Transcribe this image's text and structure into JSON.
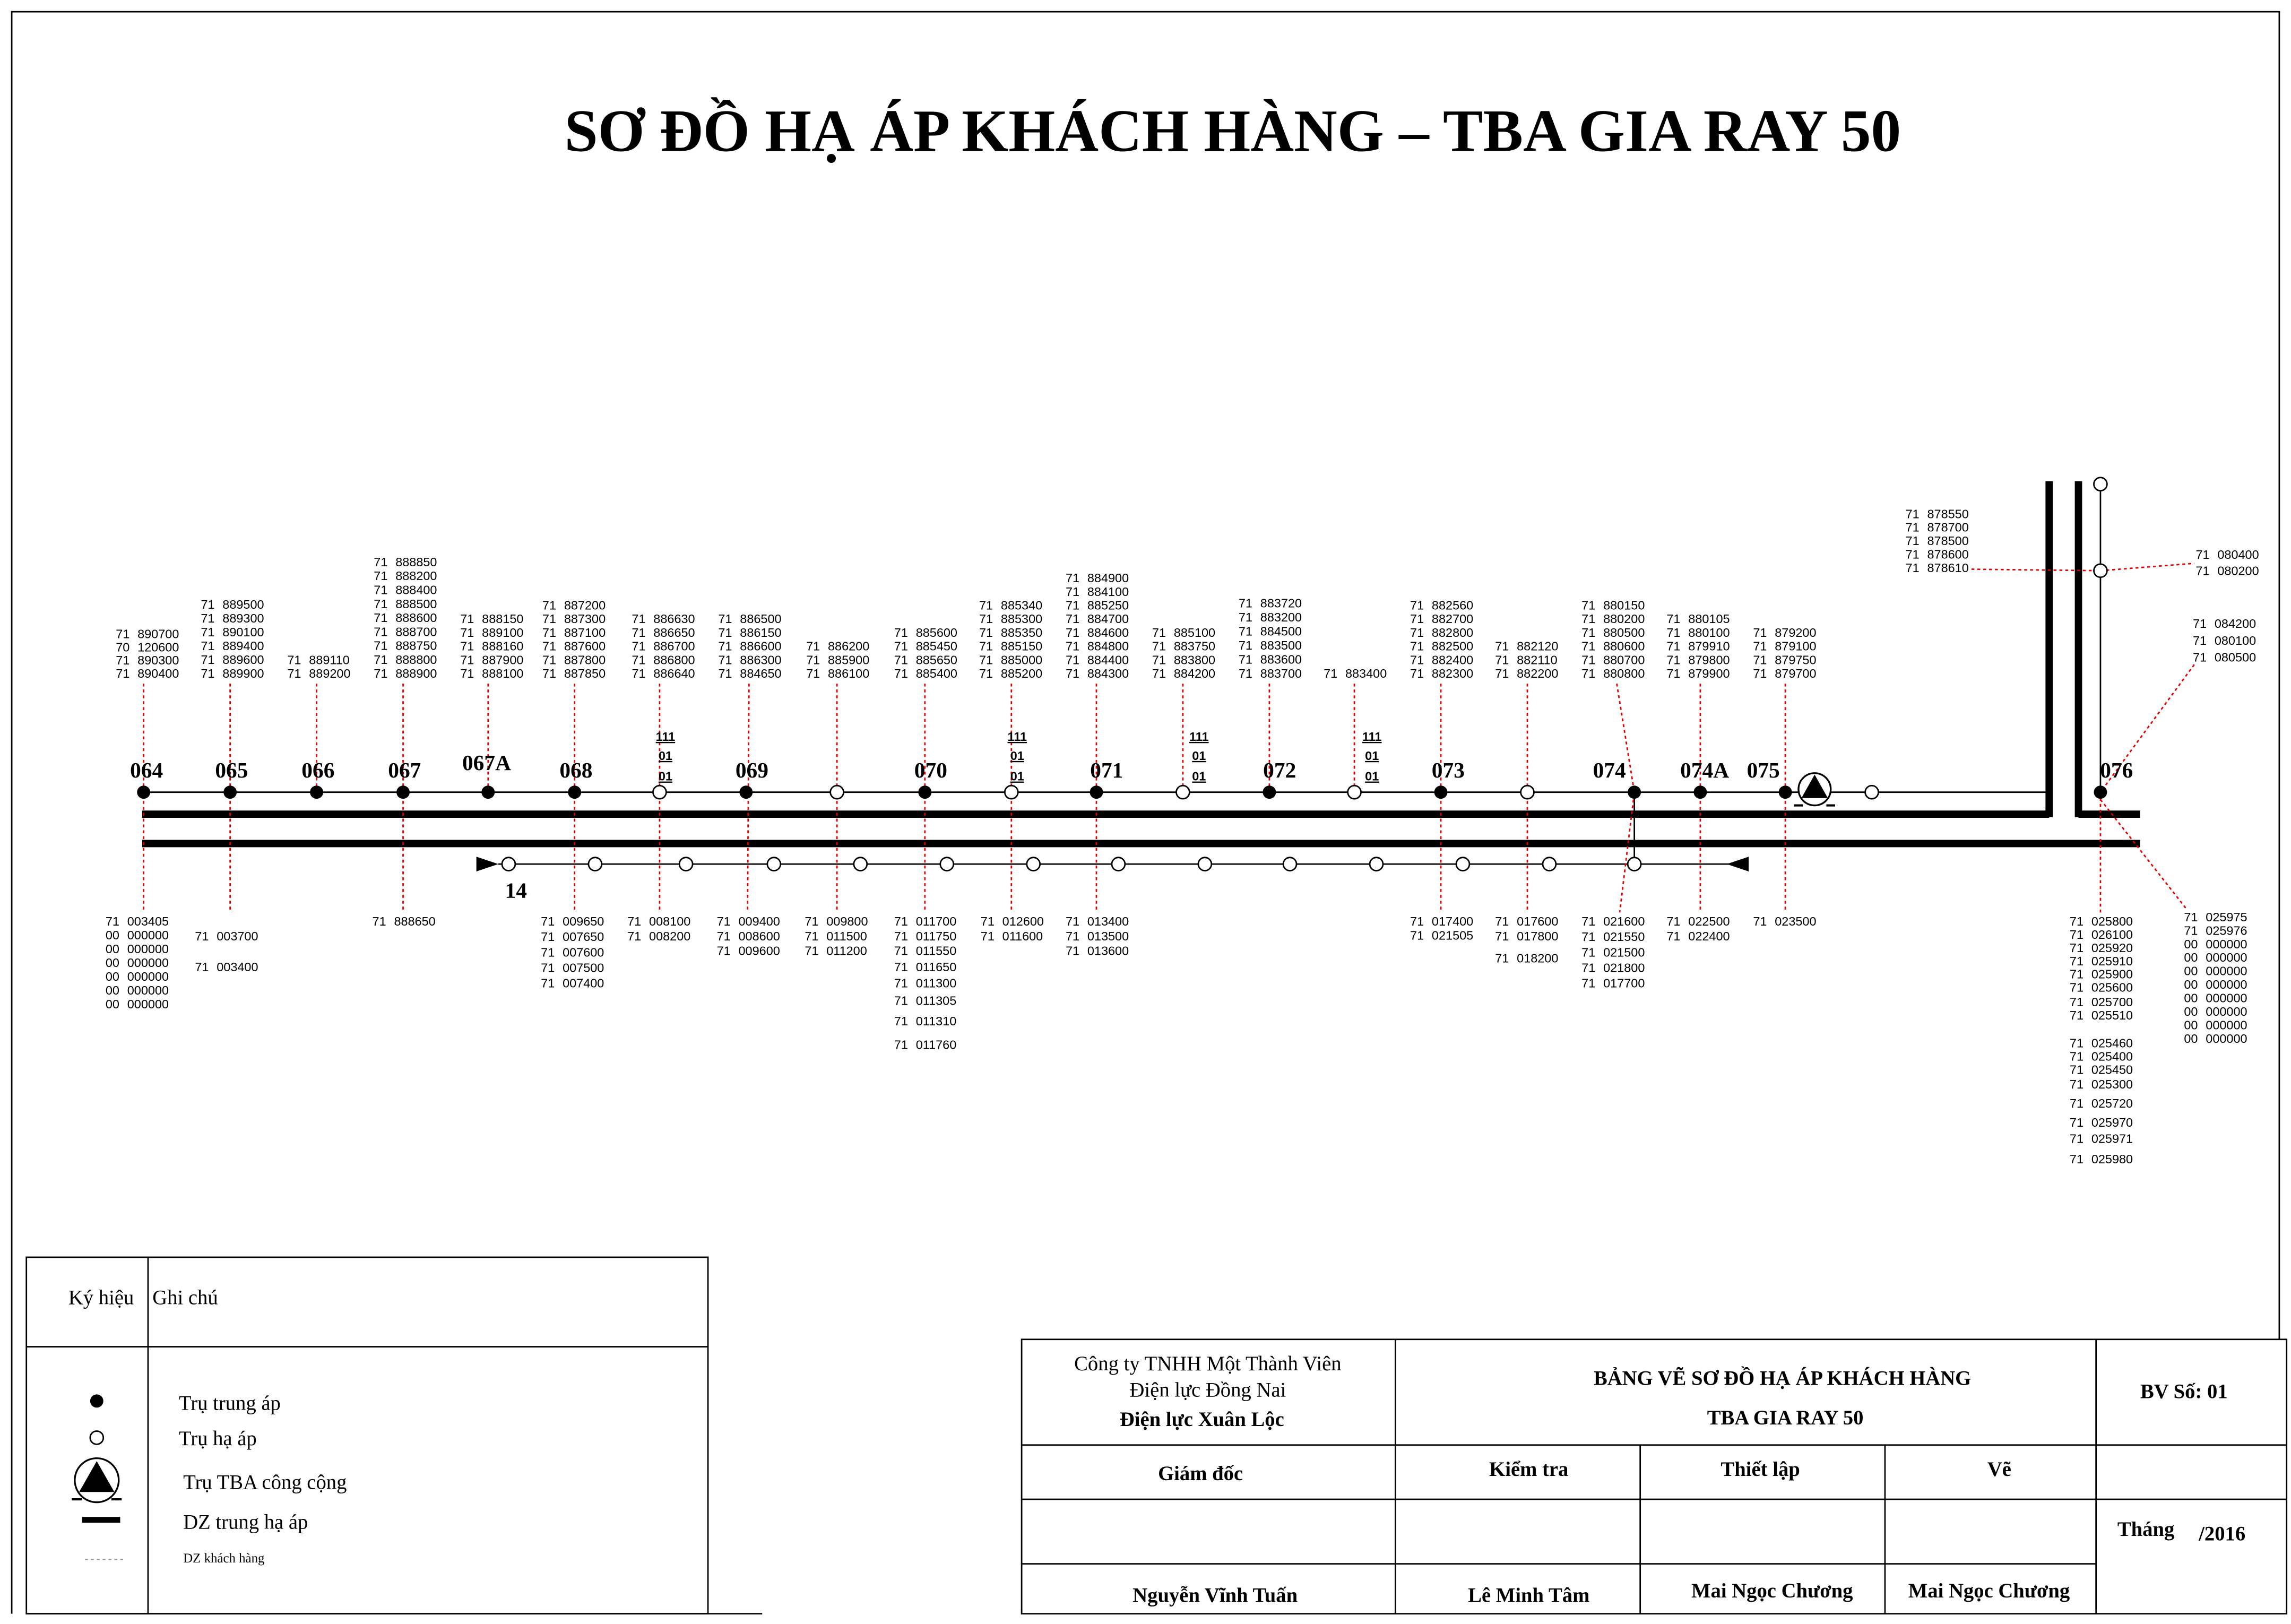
{
  "title": "SƠ ĐỒ HẠ ÁP KHÁCH HÀNG – TBA GIA RAY 50",
  "pole_labels": [
    "064",
    "065",
    "066",
    "067",
    "067A",
    "068",
    "069",
    "070",
    "071",
    "072",
    "073",
    "074",
    "074A",
    "075",
    "076"
  ],
  "pole_tags": [
    [
      "111",
      "01",
      "01"
    ],
    [
      "111",
      "01",
      "01"
    ],
    [
      "111",
      "01",
      "01"
    ],
    [
      "111",
      "01",
      "01"
    ]
  ],
  "branch_label": "14",
  "colors": {
    "customer_link": "#e00000",
    "line": "#000000"
  },
  "customers_top": [
    [
      "71 890700",
      "70 120600",
      "71 890300",
      "71 890400"
    ],
    [
      "71 889500",
      "71 889300",
      "71 890100",
      "71 889400",
      "71 889600",
      "71 889900"
    ],
    [
      "71 889110",
      "71 889200"
    ],
    [
      "71 888850",
      "71 888200",
      "71 888400",
      "71 888500",
      "71 888600",
      "71 888700",
      "71 888750",
      "71 888800",
      "71 888900"
    ],
    [
      "71 888150",
      "71 889100",
      "71 888160",
      "71 887900",
      "71 888100"
    ],
    [
      "71 887200",
      "71 887300",
      "71 887100",
      "71 887600",
      "71 887800",
      "71 887850"
    ],
    [
      "71 886630",
      "71 886650",
      "71 886700",
      "71 886800",
      "71 886640"
    ],
    [
      "71 886500",
      "71 886150",
      "71 886600",
      "71 886300",
      "71 884650"
    ],
    [
      "71 886200",
      "71 885900",
      "71 886100"
    ],
    [
      "71 885600",
      "71 885450",
      "71 885650",
      "71 885400"
    ],
    [
      "71 885340",
      "71 885300",
      "71 885350",
      "71 885150",
      "71 885000",
      "71 885200"
    ],
    [
      "71 884900",
      "71 884100",
      "71 885250",
      "71 884700",
      "71 884600",
      "71 884800",
      "71 884400",
      "71 884300"
    ],
    [
      "71 885100",
      "71 883750",
      "71 883800",
      "71 884200"
    ],
    [
      "71 883720",
      "71 883200",
      "71 884500",
      "71 883500",
      "71 883600",
      "71 883700"
    ],
    [
      "71 883400"
    ],
    [
      "71 882560",
      "71 882700",
      "71 882800",
      "71 882500",
      "71 882400",
      "71 882300"
    ],
    [
      "71 882120",
      "71 882110",
      "71 882200"
    ],
    [
      "71 880150",
      "71 880200",
      "71 880500",
      "71 880600",
      "71 880700",
      "71 880800"
    ],
    [
      "71 880105",
      "71 880100",
      "71 879910",
      "71 879800",
      "71 879900"
    ],
    [
      "71 879200",
      "71 879100",
      "71 879750",
      "71 879700"
    ],
    [
      "71 878550",
      "71 878700",
      "71 878500",
      "71 878600",
      "71 878610"
    ],
    [
      "71 080400",
      "71 080200"
    ],
    [
      "71 084200",
      "71 080100",
      "71 080500"
    ]
  ],
  "customers_bottom": [
    [
      "71 003405",
      "00 000000",
      "00 000000",
      "00 000000",
      "00 000000",
      "00 000000",
      "00 000000"
    ],
    [
      "71 003700",
      "71 003400"
    ],
    [
      "71 888650"
    ],
    [
      "71 009650",
      "71 007650",
      "71 007600",
      "71 007500",
      "71 007400"
    ],
    [
      "71 008100",
      "71 008200"
    ],
    [
      "71 009400",
      "71 008600",
      "71 009600"
    ],
    [
      "71 009800",
      "71 011500",
      "71 011200"
    ],
    [
      "71 011700",
      "71 011750",
      "71 011550",
      "71 011650",
      "71 011300",
      "71 011305",
      "71 011310",
      "71 011760"
    ],
    [
      "71 012600",
      "71 011600"
    ],
    [
      "71 013400",
      "71 013500",
      "71 013600"
    ],
    [
      "71 017400",
      "71 021505"
    ],
    [
      "71 017600",
      "71 017800",
      "71 018200"
    ],
    [
      "71 021600",
      "71 021550",
      "71 021500",
      "71 021800",
      "71 017700"
    ],
    [
      "71 022500",
      "71 022400"
    ],
    [
      "71 023500"
    ],
    [
      "71 025800",
      "71 026100",
      "71 025920",
      "71 025910",
      "71 025900",
      "71 025600",
      "71 025700",
      "71 025510",
      "71 025460",
      "71 025400",
      "71 025450",
      "71 025300",
      "71 025720",
      "71 025970",
      "71 025971",
      "71 025980"
    ],
    [
      "71 025975",
      "71 025976",
      "00 000000",
      "00 000000",
      "00 000000",
      "00 000000",
      "00 000000",
      "00 000000",
      "00 000000",
      "00 000000"
    ]
  ],
  "legend": {
    "header_symbol": "Ký hiệu",
    "header_note": "Ghi chú",
    "items": [
      {
        "icon": "filled-dot-icon",
        "label": "Trụ trung áp"
      },
      {
        "icon": "hollow-circle-icon",
        "label": "Trụ hạ áp"
      },
      {
        "icon": "substation-icon",
        "label": "Trụ TBA công cộng"
      },
      {
        "icon": "thick-line-icon",
        "label": "DZ trung hạ áp"
      },
      {
        "icon": "dashed-line-icon",
        "label": "DZ khách hàng"
      }
    ]
  },
  "title_block": {
    "company_line1": "Công ty TNHH Một Thành Viên",
    "company_line2": "Điện lực Đồng Nai",
    "company_line3": "Điện lực Xuân Lộc",
    "drawing_title_1": "BẢNG VẼ SƠ ĐỒ HẠ ÁP KHÁCH HÀNG",
    "drawing_title_2": "TBA GIA RAY 50",
    "drawing_number": "BV Số: 01",
    "roles": [
      "Giám đốc",
      "Kiểm tra",
      "Thiết lập",
      "Vẽ"
    ],
    "names": [
      "Nguyễn Vĩnh Tuấn",
      "Lê Minh Tâm",
      "Mai Ngọc Chương",
      "Mai Ngọc Chương"
    ],
    "month_label": "Tháng",
    "year": "/2016"
  }
}
